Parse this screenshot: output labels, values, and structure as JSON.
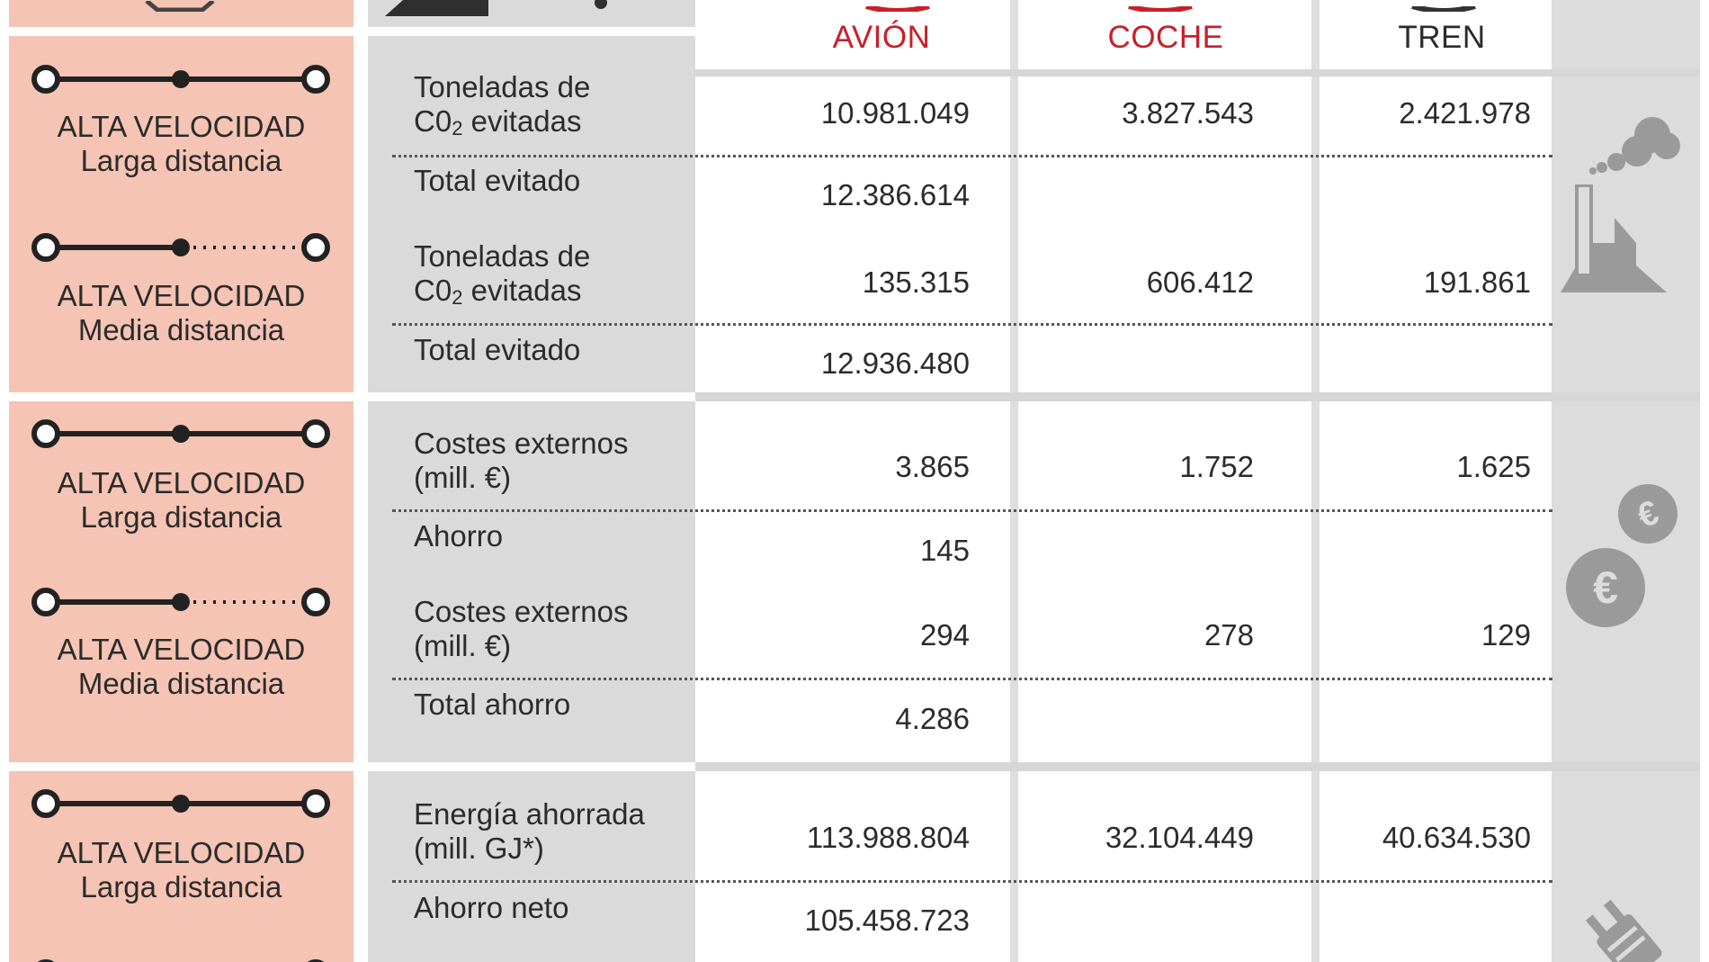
{
  "columns": {
    "plane": "AVIÓN",
    "car": "COCHE",
    "train": "TREN"
  },
  "colors": {
    "route_bg": "#f5c4b4",
    "label_bg": "#dadada",
    "accent_red": "#c8202a",
    "icon_gray": "#9a9a9a"
  },
  "sections": [
    {
      "name": "co2",
      "icon": "factory-smoke-icon",
      "routes": [
        {
          "line1": "ALTA VELOCIDAD",
          "line2": "Larga distancia",
          "type": "solid"
        },
        {
          "line1": "ALTA VELOCIDAD",
          "line2": "Media distancia",
          "type": "dotted"
        }
      ],
      "rows": [
        {
          "label1": "Toneladas de",
          "label2_pre": "C0",
          "label2_sub": "2",
          "label2_post": " evitadas",
          "plane": "10.981.049",
          "car": "3.827.543",
          "train": "2.421.978"
        },
        {
          "label": "Total evitado",
          "plane": "12.386.614"
        },
        {
          "label1": "Toneladas de",
          "label2_pre": "C0",
          "label2_sub": "2",
          "label2_post": " evitadas",
          "plane": "135.315",
          "car": "606.412",
          "train": "191.861"
        },
        {
          "label": "Total evitado",
          "plane": "12.936.480"
        }
      ]
    },
    {
      "name": "costs",
      "icon": "euro-coins-icon",
      "routes": [
        {
          "line1": "ALTA VELOCIDAD",
          "line2": "Larga distancia",
          "type": "solid"
        },
        {
          "line1": "ALTA VELOCIDAD",
          "line2": "Media distancia",
          "type": "dotted"
        }
      ],
      "rows": [
        {
          "label1": "Costes externos",
          "label2": "(mill. €)",
          "plane": "3.865",
          "car": "1.752",
          "train": "1.625"
        },
        {
          "label": "Ahorro",
          "plane": "145"
        },
        {
          "label1": "Costes externos",
          "label2": "(mill. €)",
          "plane": "294",
          "car": "278",
          "train": "129"
        },
        {
          "label": "Total ahorro",
          "plane": "4.286"
        }
      ]
    },
    {
      "name": "energy",
      "icon": "plug-icon",
      "routes": [
        {
          "line1": "ALTA VELOCIDAD",
          "line2": "Larga distancia",
          "type": "solid"
        }
      ],
      "rows": [
        {
          "label1": "Energía ahorrada",
          "label2": "(mill. GJ*)",
          "plane": "113.988.804",
          "car": "32.104.449",
          "train": "40.634.530"
        },
        {
          "label": "Ahorro neto",
          "plane": "105.458.723"
        }
      ]
    }
  ]
}
